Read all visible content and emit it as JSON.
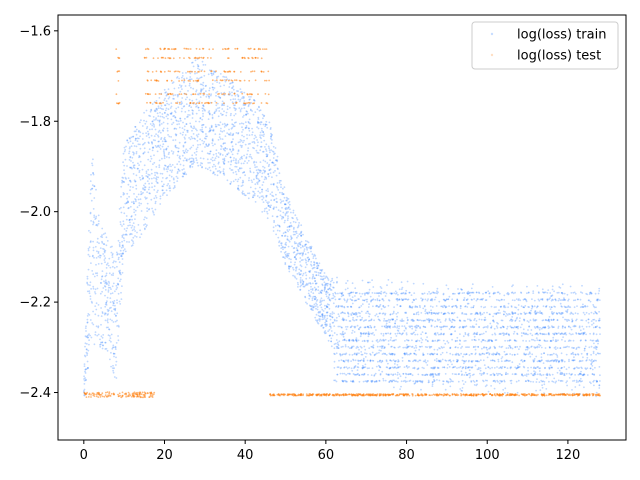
{
  "chart_data": {
    "type": "scatter",
    "x_ticks": [
      0,
      20,
      40,
      60,
      80,
      100,
      120
    ],
    "y_ticks": [
      -2.4,
      -2.2,
      -2.0,
      -1.8,
      -1.6
    ],
    "y_tick_labels": [
      "−2.4",
      "−2.2",
      "−2.0",
      "−1.8",
      "−1.6"
    ],
    "xlim": [
      -6.4,
      134.4
    ],
    "ylim": [
      -2.505,
      -1.565
    ],
    "grid": false,
    "legend": {
      "placement": "top-right"
    },
    "series": [
      {
        "name": "log(loss) train",
        "color": "#1f77ff",
        "x_range": [
          0,
          128
        ],
        "envelope": [
          {
            "x": 0,
            "y_low": -2.42,
            "y_high": -2.38
          },
          {
            "x": 1,
            "y_low": -2.35,
            "y_high": -2.1
          },
          {
            "x": 2,
            "y_low": -2.3,
            "y_high": -1.85
          },
          {
            "x": 4,
            "y_low": -2.3,
            "y_high": -2.02
          },
          {
            "x": 6,
            "y_low": -2.32,
            "y_high": -2.05
          },
          {
            "x": 8,
            "y_low": -2.38,
            "y_high": -2.1
          },
          {
            "x": 10,
            "y_low": -2.1,
            "y_high": -1.85
          },
          {
            "x": 15,
            "y_low": -2.05,
            "y_high": -1.78
          },
          {
            "x": 20,
            "y_low": -1.97,
            "y_high": -1.73
          },
          {
            "x": 28,
            "y_low": -1.9,
            "y_high": -1.66
          },
          {
            "x": 35,
            "y_low": -1.93,
            "y_high": -1.7
          },
          {
            "x": 42,
            "y_low": -1.98,
            "y_high": -1.75
          },
          {
            "x": 46,
            "y_low": -2.02,
            "y_high": -1.8
          },
          {
            "x": 50,
            "y_low": -2.12,
            "y_high": -1.95
          },
          {
            "x": 55,
            "y_low": -2.2,
            "y_high": -2.05
          },
          {
            "x": 60,
            "y_low": -2.28,
            "y_high": -2.14
          },
          {
            "x": 65,
            "y_low": -2.35,
            "y_high": -2.15
          },
          {
            "x": 80,
            "y_low": -2.4,
            "y_high": -2.15
          },
          {
            "x": 100,
            "y_low": -2.4,
            "y_high": -2.16
          },
          {
            "x": 128,
            "y_low": -2.41,
            "y_high": -2.16
          }
        ]
      },
      {
        "name": "log(loss) test",
        "color": "#ff7f0e",
        "base_level": -2.405,
        "x_range": [
          0,
          128
        ],
        "upper_bands": [
          -1.64,
          -1.66,
          -1.69,
          -1.71,
          -1.74,
          -1.76
        ],
        "upper_x_range": [
          8,
          46
        ]
      }
    ]
  }
}
